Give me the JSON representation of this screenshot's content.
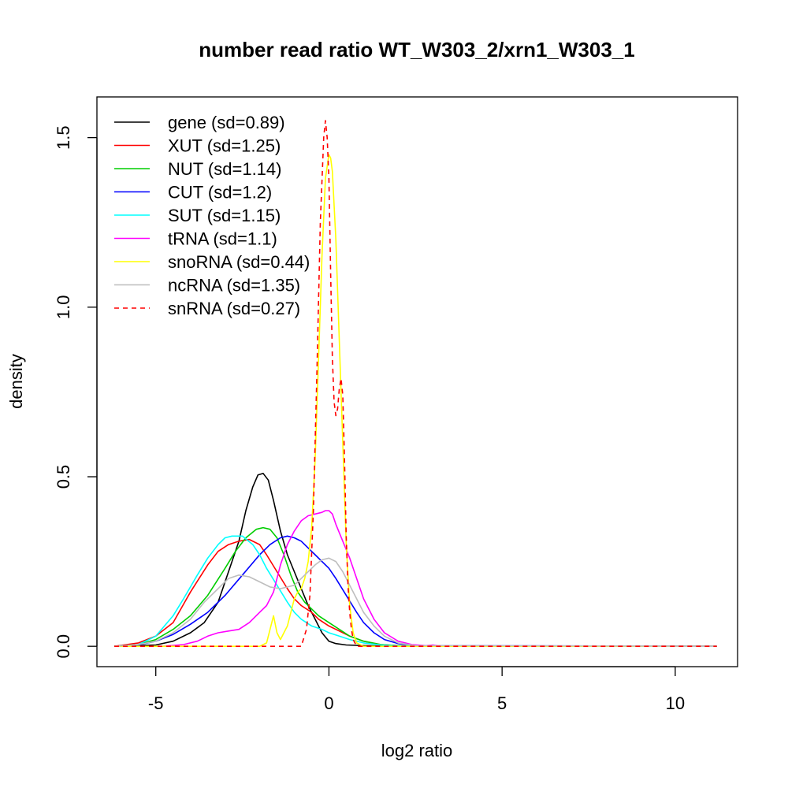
{
  "chart_data": {
    "type": "line",
    "title": "number read ratio WT_W303_2/xrn1_W303_1",
    "xlabel": "log2 ratio",
    "ylabel": "density",
    "xlim": [
      -6.7,
      11.8
    ],
    "ylim": [
      -0.06,
      1.62
    ],
    "xticks": [
      -5,
      0,
      5,
      10
    ],
    "xtick_labels": [
      "-5",
      "0",
      "5",
      "10"
    ],
    "yticks": [
      0.0,
      0.5,
      1.0,
      1.5
    ],
    "ytick_labels": [
      "0.0",
      "0.5",
      "1.0",
      "1.5"
    ],
    "grid": false,
    "legend_position": "top-left",
    "series": [
      {
        "name": "gene (sd=0.89)",
        "color": "#000000",
        "dash": "solid",
        "x": [
          -6.2,
          -5.0,
          -4.5,
          -4.0,
          -3.6,
          -3.2,
          -2.9,
          -2.6,
          -2.4,
          -2.2,
          -2.05,
          -1.9,
          -1.75,
          -1.6,
          -1.4,
          -1.2,
          -1.0,
          -0.8,
          -0.6,
          -0.4,
          -0.2,
          0.0,
          0.2,
          0.5,
          1.0,
          1.5,
          2.0,
          3.0,
          11.2
        ],
        "y": [
          0,
          0.004,
          0.015,
          0.04,
          0.07,
          0.13,
          0.22,
          0.31,
          0.4,
          0.47,
          0.505,
          0.51,
          0.49,
          0.43,
          0.34,
          0.27,
          0.22,
          0.17,
          0.12,
          0.08,
          0.04,
          0.015,
          0.008,
          0.004,
          0.002,
          0.001,
          0,
          0,
          0
        ]
      },
      {
        "name": "XUT (sd=1.25)",
        "color": "#ff0000",
        "dash": "solid",
        "x": [
          -6.2,
          -5.5,
          -5.0,
          -4.5,
          -4.0,
          -3.5,
          -3.2,
          -2.9,
          -2.6,
          -2.3,
          -2.0,
          -1.8,
          -1.5,
          -1.2,
          -1.0,
          -0.8,
          -0.5,
          -0.3,
          0.0,
          0.3,
          0.6,
          1.0,
          1.5,
          2.0,
          2.5,
          11.2
        ],
        "y": [
          0,
          0.01,
          0.03,
          0.07,
          0.16,
          0.24,
          0.28,
          0.3,
          0.31,
          0.315,
          0.3,
          0.27,
          0.22,
          0.17,
          0.14,
          0.12,
          0.1,
          0.08,
          0.06,
          0.045,
          0.03,
          0.015,
          0.005,
          0.002,
          0,
          0
        ]
      },
      {
        "name": "NUT (sd=1.14)",
        "color": "#00cd00",
        "dash": "solid",
        "x": [
          -6.2,
          -5.5,
          -5.0,
          -4.5,
          -4.0,
          -3.5,
          -3.0,
          -2.7,
          -2.4,
          -2.1,
          -1.9,
          -1.7,
          -1.5,
          -1.3,
          -1.1,
          -0.9,
          -0.7,
          -0.5,
          -0.3,
          0.0,
          0.3,
          0.6,
          1.0,
          1.5,
          2.0,
          2.5,
          11.2
        ],
        "y": [
          0,
          0.005,
          0.02,
          0.05,
          0.09,
          0.15,
          0.23,
          0.28,
          0.32,
          0.345,
          0.35,
          0.345,
          0.32,
          0.27,
          0.21,
          0.16,
          0.13,
          0.11,
          0.09,
          0.07,
          0.05,
          0.03,
          0.015,
          0.005,
          0.002,
          0,
          0
        ]
      },
      {
        "name": "CUT (sd=1.2)",
        "color": "#0000ff",
        "dash": "solid",
        "x": [
          -6.2,
          -5.5,
          -5.0,
          -4.5,
          -4.0,
          -3.5,
          -3.0,
          -2.5,
          -2.0,
          -1.7,
          -1.4,
          -1.2,
          -1.0,
          -0.8,
          -0.6,
          -0.4,
          -0.2,
          0.0,
          0.2,
          0.5,
          0.8,
          1.0,
          1.3,
          1.6,
          2.0,
          2.5,
          11.2
        ],
        "y": [
          0,
          0.004,
          0.015,
          0.035,
          0.065,
          0.1,
          0.15,
          0.21,
          0.27,
          0.3,
          0.32,
          0.325,
          0.32,
          0.31,
          0.29,
          0.27,
          0.25,
          0.23,
          0.2,
          0.15,
          0.1,
          0.07,
          0.04,
          0.02,
          0.008,
          0.002,
          0
        ]
      },
      {
        "name": "SUT (sd=1.15)",
        "color": "#00ffff",
        "dash": "solid",
        "x": [
          -6.2,
          -5.5,
          -5.0,
          -4.5,
          -4.2,
          -3.8,
          -3.5,
          -3.2,
          -3.0,
          -2.8,
          -2.5,
          -2.2,
          -2.0,
          -1.8,
          -1.5,
          -1.2,
          -1.0,
          -0.8,
          -0.5,
          -0.2,
          0.0,
          0.3,
          0.6,
          1.0,
          1.5,
          2.0,
          11.2
        ],
        "y": [
          0,
          0.005,
          0.03,
          0.09,
          0.14,
          0.21,
          0.26,
          0.3,
          0.32,
          0.325,
          0.325,
          0.3,
          0.27,
          0.23,
          0.18,
          0.13,
          0.1,
          0.08,
          0.06,
          0.05,
          0.04,
          0.03,
          0.02,
          0.01,
          0.004,
          0.001,
          0
        ]
      },
      {
        "name": "tRNA (sd=1.1)",
        "color": "#ff00ff",
        "dash": "solid",
        "x": [
          -4.8,
          -4.2,
          -3.8,
          -3.5,
          -3.2,
          -2.9,
          -2.6,
          -2.3,
          -2.0,
          -1.8,
          -1.6,
          -1.4,
          -1.2,
          -1.0,
          -0.8,
          -0.6,
          -0.4,
          -0.2,
          -0.1,
          0.0,
          0.1,
          0.2,
          0.4,
          0.6,
          0.8,
          1.0,
          1.3,
          1.6,
          2.0,
          2.4,
          2.8,
          3.0,
          3.3,
          11.2
        ],
        "y": [
          0,
          0.005,
          0.015,
          0.03,
          0.04,
          0.045,
          0.05,
          0.07,
          0.1,
          0.12,
          0.16,
          0.24,
          0.3,
          0.34,
          0.37,
          0.385,
          0.39,
          0.395,
          0.4,
          0.4,
          0.39,
          0.36,
          0.31,
          0.26,
          0.2,
          0.14,
          0.08,
          0.04,
          0.015,
          0.005,
          0.002,
          0.004,
          0,
          0
        ]
      },
      {
        "name": "snoRNA (sd=0.44)",
        "color": "#ffff00",
        "dash": "solid",
        "x": [
          -6.2,
          -2.0,
          -1.8,
          -1.7,
          -1.6,
          -1.5,
          -1.4,
          -1.3,
          -1.2,
          -1.1,
          -1.0,
          -0.9,
          -0.8,
          -0.7,
          -0.6,
          -0.5,
          -0.4,
          -0.3,
          -0.2,
          -0.1,
          0.0,
          0.05,
          0.1,
          0.2,
          0.3,
          0.4,
          0.5,
          0.6,
          0.7,
          0.8,
          1.0,
          11.2
        ],
        "y": [
          0,
          0,
          0.01,
          0.05,
          0.09,
          0.04,
          0.02,
          0.04,
          0.06,
          0.1,
          0.14,
          0.16,
          0.17,
          0.2,
          0.25,
          0.35,
          0.55,
          0.85,
          1.15,
          1.38,
          1.45,
          1.44,
          1.4,
          1.2,
          0.9,
          0.6,
          0.3,
          0.12,
          0.04,
          0.01,
          0,
          0
        ]
      },
      {
        "name": "ncRNA (sd=1.35)",
        "color": "#bebebe",
        "dash": "solid",
        "x": [
          -6.2,
          -5.5,
          -5.0,
          -4.5,
          -4.0,
          -3.6,
          -3.2,
          -2.9,
          -2.6,
          -2.3,
          -2.0,
          -1.7,
          -1.4,
          -1.2,
          -1.0,
          -0.8,
          -0.6,
          -0.4,
          -0.2,
          0.0,
          0.2,
          0.4,
          0.6,
          0.8,
          1.0,
          1.3,
          1.6,
          2.0,
          2.5,
          11.2
        ],
        "y": [
          0,
          0.005,
          0.015,
          0.04,
          0.08,
          0.13,
          0.17,
          0.2,
          0.21,
          0.205,
          0.19,
          0.175,
          0.17,
          0.175,
          0.18,
          0.2,
          0.22,
          0.24,
          0.255,
          0.26,
          0.25,
          0.22,
          0.18,
          0.14,
          0.1,
          0.06,
          0.03,
          0.01,
          0.002,
          0
        ]
      },
      {
        "name": "snRNA (sd=0.27)",
        "color": "#ff0000",
        "dash": "dashed",
        "x": [
          -6.2,
          -0.8,
          -0.65,
          -0.55,
          -0.45,
          -0.35,
          -0.25,
          -0.15,
          -0.1,
          -0.05,
          0.0,
          0.05,
          0.1,
          0.15,
          0.2,
          0.25,
          0.3,
          0.35,
          0.4,
          0.45,
          0.5,
          0.55,
          0.6,
          0.65,
          0.7,
          0.8,
          11.2
        ],
        "y": [
          0,
          0,
          0.05,
          0.15,
          0.4,
          0.8,
          1.25,
          1.5,
          1.55,
          1.5,
          1.38,
          1.1,
          0.85,
          0.72,
          0.68,
          0.7,
          0.76,
          0.79,
          0.74,
          0.55,
          0.32,
          0.18,
          0.1,
          0.05,
          0.02,
          0,
          0
        ]
      }
    ]
  }
}
